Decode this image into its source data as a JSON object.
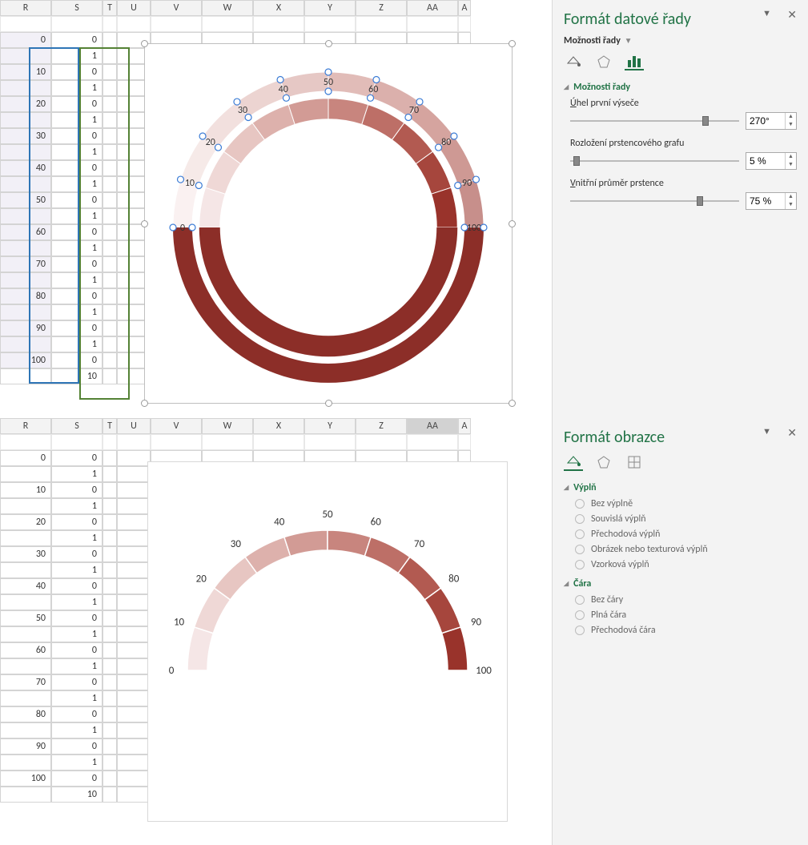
{
  "columns": [
    "R",
    "S",
    "T",
    "U",
    "V",
    "W",
    "X",
    "Y",
    "Z",
    "AA",
    "A"
  ],
  "col_widths": [
    "cw-r",
    "cw-s",
    "cw-t",
    "cw-u",
    "cw-v",
    "cw-w",
    "cw-x",
    "cw-y",
    "cw-z",
    "cw-aa",
    "cw-a"
  ],
  "table": {
    "r": [
      0,
      "",
      10,
      "",
      20,
      "",
      30,
      "",
      40,
      "",
      50,
      "",
      60,
      "",
      70,
      "",
      80,
      "",
      90,
      "",
      100,
      ""
    ],
    "s": [
      0,
      1,
      0,
      1,
      0,
      1,
      0,
      1,
      0,
      1,
      0,
      1,
      0,
      1,
      0,
      1,
      0,
      1,
      0,
      1,
      0,
      10
    ]
  },
  "chart": {
    "labels": [
      0,
      10,
      20,
      30,
      40,
      50,
      60,
      70,
      80,
      90,
      100
    ],
    "segment_colors": [
      "#f5e6e6",
      "#efd8d6",
      "#e7c6c2",
      "#ddb1ac",
      "#d29b95",
      "#c8857e",
      "#bd6f67",
      "#b25a51",
      "#a6463d",
      "#99332b"
    ],
    "bottom_color": "#8c2e28",
    "inner_diameter_pct": 75,
    "explosion_pct": 5,
    "first_angle": 270,
    "select_handles": true
  },
  "panel1": {
    "title": "Formát datové řady",
    "subtitle": "Možnosti řady",
    "section": "Možnosti řady",
    "f1": {
      "label": "Úhel první výseče",
      "underline_char": "Ú",
      "value": "270°",
      "slider_pos": 0.78
    },
    "f2": {
      "label": "Rozložení prstencového grafu",
      "value": "5 %",
      "slider_pos": 0.02
    },
    "f3": {
      "label": "Vnitřní průměr prstence",
      "underline_char": "V",
      "value": "75 %",
      "slider_pos": 0.75
    }
  },
  "panel2": {
    "title": "Formát obrazce",
    "section1": "Výplň",
    "fill_options": [
      "Bez výplně",
      "Souvislá výplň",
      "Přechodová výplň",
      "Obrázek nebo texturová výplň",
      "Vzorková výplň"
    ],
    "fill_underline_idx": [
      3,
      3,
      null,
      0,
      0
    ],
    "section2": "Čára",
    "line_options": [
      "Bez čáry",
      "Plná čára",
      "Přechodová čára"
    ],
    "line_underline_idx": [
      null,
      1,
      14
    ]
  },
  "aa_selected_col": "AA"
}
